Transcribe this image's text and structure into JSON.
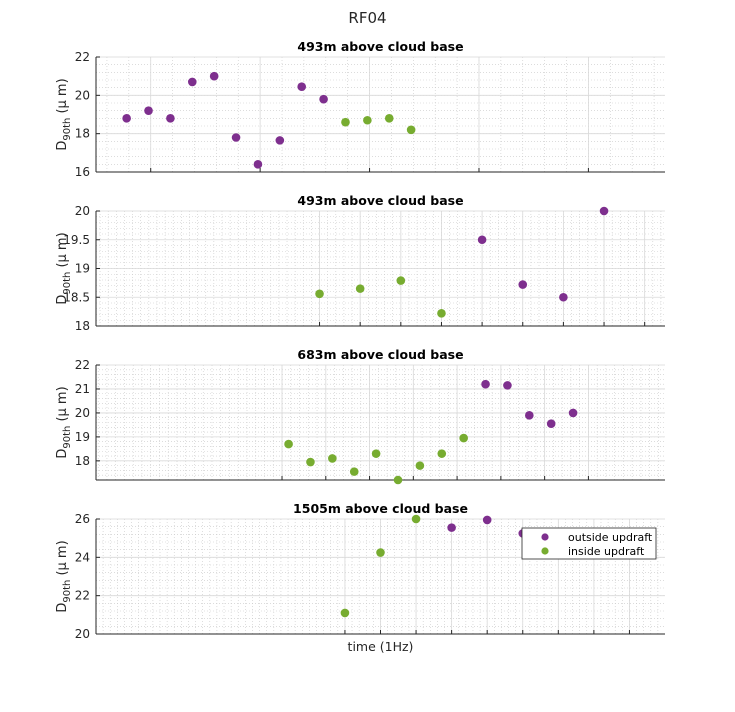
{
  "figure": {
    "title": "RF04",
    "xlabel": "time (1Hz)"
  },
  "colors": {
    "outside": "#7E2F8E",
    "inside": "#77AC30",
    "grid": "#d9d9d9",
    "minor_grid": "#c8c8c8",
    "axis": "#262626"
  },
  "legend": {
    "placement": "top-right of bottom panel",
    "entries": [
      {
        "label": "outside updraft",
        "color": "#7E2F8E"
      },
      {
        "label": "inside updraft",
        "color": "#77AC30"
      }
    ]
  },
  "chart_data": [
    {
      "type": "scatter",
      "title": "493m above cloud base",
      "ylabel": "D_90th (μ m)",
      "ylim": [
        16,
        22
      ],
      "yticks": [
        16,
        18,
        20,
        22
      ],
      "xlim": [
        0,
        26
      ],
      "xticks": [
        2.5,
        7.5,
        12.5,
        17.5,
        22.5
      ],
      "grid": true,
      "series": [
        {
          "name": "outside updraft",
          "x": [
            1.4,
            2.4,
            3.4,
            4.4,
            5.4,
            6.4,
            7.4,
            8.4,
            9.4,
            10.4
          ],
          "y": [
            18.8,
            19.2,
            18.8,
            20.7,
            21.0,
            17.8,
            16.4,
            17.65,
            20.45,
            19.8
          ]
        },
        {
          "name": "inside updraft",
          "x": [
            11.4,
            12.4,
            13.4,
            14.4
          ],
          "y": [
            18.6,
            18.7,
            18.8,
            18.2
          ]
        }
      ]
    },
    {
      "type": "scatter",
      "title": "493m above cloud base",
      "ylabel": "D_90th (μ m)",
      "ylim": [
        18,
        20
      ],
      "yticks": [
        18,
        18.5,
        19,
        19.5,
        20
      ],
      "xlim": [
        0,
        14
      ],
      "xticks": [
        5.5,
        6.5,
        7.5,
        8.5,
        9.5,
        10.5,
        11.5,
        12.5,
        13.5
      ],
      "grid": true,
      "series": [
        {
          "name": "outside updraft",
          "x": [
            9.5,
            10.5,
            11.5,
            12.5
          ],
          "y": [
            19.5,
            18.72,
            18.5,
            20.0
          ]
        },
        {
          "name": "inside updraft",
          "x": [
            5.5,
            6.5,
            7.5,
            8.5
          ],
          "y": [
            18.56,
            18.65,
            18.79,
            18.22
          ]
        }
      ]
    },
    {
      "type": "scatter",
      "title": "683m above cloud base",
      "ylabel": "D_90th (μ m)",
      "ylim": [
        17.2,
        22
      ],
      "yticks": [
        18,
        19,
        20,
        21,
        22
      ],
      "xlim": [
        0,
        26
      ],
      "xticks": [
        8.5,
        10.5,
        12.5,
        14.5,
        16.5,
        18.5,
        20.5,
        22.5
      ],
      "grid": true,
      "series": [
        {
          "name": "outside updraft",
          "x": [
            17.8,
            18.8,
            19.8,
            20.8,
            21.8
          ],
          "y": [
            21.2,
            21.15,
            19.9,
            19.55,
            20.0
          ]
        },
        {
          "name": "inside updraft",
          "x": [
            8.8,
            9.8,
            10.8,
            11.8,
            12.8,
            13.8,
            14.8,
            15.8,
            16.8
          ],
          "y": [
            18.7,
            17.95,
            18.1,
            17.55,
            18.3,
            17.2,
            17.8,
            18.3,
            18.95
          ]
        }
      ]
    },
    {
      "type": "scatter",
      "title": "1505m above cloud base",
      "ylabel": "D_90th (μ m)",
      "ylim": [
        20,
        26
      ],
      "yticks": [
        20,
        22,
        24,
        26
      ],
      "xlim": [
        0,
        16
      ],
      "xticks": [
        7,
        8,
        9,
        10,
        11,
        12,
        13,
        14,
        15
      ],
      "grid": true,
      "series": [
        {
          "name": "outside updraft",
          "x": [
            10,
            11,
            12
          ],
          "y": [
            25.55,
            25.95,
            25.25
          ]
        },
        {
          "name": "inside updraft",
          "x": [
            7,
            8,
            9
          ],
          "y": [
            21.1,
            24.25,
            26.0
          ]
        }
      ]
    }
  ]
}
